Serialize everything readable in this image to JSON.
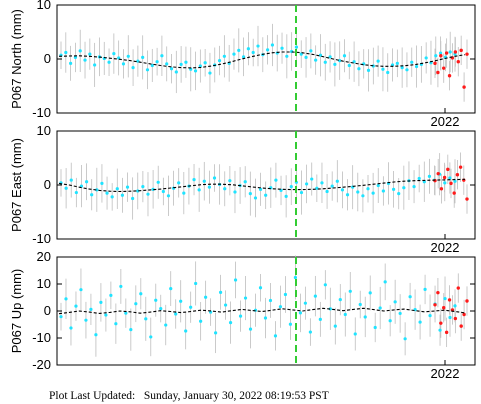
{
  "chart_data": [
    {
      "type": "scatter",
      "ylabel": "P067 North (mm)",
      "ylim": [
        -10,
        10
      ],
      "yticks": [
        -10,
        0,
        10
      ],
      "year_label": "2022",
      "series": [
        {
          "values": [
            0.7,
            1.2,
            -0.8,
            0.3,
            1.5,
            -0.2,
            0.9,
            -1.1,
            0.4,
            0.1,
            -0.6,
            1.0,
            0.2,
            -0.9,
            0.5,
            -1.6,
            -0.4,
            0.3,
            -2.0,
            -1.2,
            -0.5,
            0.6,
            -0.9,
            -1.8,
            -2.4,
            -1.0,
            -0.6,
            -1.9,
            -2.2,
            -1.3,
            -0.7,
            -2.6,
            -1.1,
            -0.3,
            0.5,
            -0.8,
            0.9,
            1.6,
            0.4,
            1.9,
            1.2,
            2.4,
            0.8,
            1.7,
            2.6,
            1.1,
            2.0,
            0.5,
            1.4,
            2.2,
            0.9,
            0.3,
            1.5,
            -0.2,
            0.7,
            -0.6,
            0.4,
            -1.0,
            -0.3,
            0.6,
            -1.2,
            -0.5,
            -1.8,
            -0.9,
            -2.1,
            -1.3,
            -0.4,
            -1.9,
            -2.5,
            -1.1,
            -0.8,
            -1.6,
            -2.0,
            -0.6,
            -1.4,
            -1.0,
            0.2,
            -0.7,
            0.6,
            1.1,
            0.3,
            1.3,
            0.9
          ]
        },
        {
          "values": [
            -0.8,
            -2.5,
            0.6,
            -1.7,
            1.1,
            -3.1,
            0.2,
            1.3,
            -0.5,
            1.6,
            -5.2,
            0.9
          ]
        },
        {
          "values": [
            0.5,
            0.55,
            0.6,
            0.5,
            0.35,
            0.15,
            -0.05,
            -0.3,
            -0.6,
            -0.9,
            -1.2,
            -1.45,
            -1.6,
            -1.65,
            -1.55,
            -1.3,
            -0.95,
            -0.5,
            0.0,
            0.45,
            0.85,
            1.15,
            1.3,
            1.3,
            1.15,
            0.85,
            0.45,
            0.0,
            -0.4,
            -0.75,
            -1.05,
            -1.25,
            -1.35,
            -1.35,
            -1.25,
            -1.05,
            -0.75,
            -0.35,
            0.1,
            0.5,
            0.8
          ]
        }
      ]
    },
    {
      "type": "scatter",
      "ylabel": "P067 East (mm)",
      "ylim": [
        -10,
        10
      ],
      "yticks": [
        -10,
        0,
        10
      ],
      "year_label": "2022",
      "series": [
        {
          "values": [
            0.4,
            -0.6,
            0.9,
            -1.4,
            -0.2,
            0.6,
            -1.8,
            -0.9,
            0.3,
            -1.5,
            -2.2,
            -0.7,
            -1.9,
            -0.4,
            -2.5,
            -1.1,
            -0.3,
            -1.7,
            -0.8,
            0.5,
            -1.2,
            -2.0,
            -0.6,
            0.4,
            -1.5,
            -0.2,
            1.0,
            -0.9,
            0.7,
            -0.4,
            1.3,
            0.1,
            -0.7,
            0.8,
            -1.3,
            -0.1,
            0.6,
            -1.6,
            -2.4,
            -0.8,
            -1.9,
            -0.5,
            0.9,
            -1.0,
            -2.1,
            -0.3,
            0.5,
            -1.4,
            0.2,
            1.1,
            -0.6,
            0.4,
            -1.2,
            -0.2,
            0.7,
            -0.9,
            -1.8,
            -0.4,
            -1.3,
            -2.0,
            -0.7,
            -1.5,
            -0.1,
            -1.1,
            0.3,
            -0.8,
            -1.6,
            -0.5,
            0.8,
            -0.3,
            1.2,
            0.6,
            1.6,
            0.9,
            2.0,
            0.4,
            1.3,
            0.7
          ]
        },
        {
          "values": [
            0.8,
            2.1,
            -0.7,
            1.4,
            2.9,
            0.3,
            -1.5,
            1.9,
            3.3,
            0.9,
            -2.6
          ]
        },
        {
          "values": [
            0.3,
            0.0,
            -0.4,
            -0.75,
            -1.0,
            -1.15,
            -1.2,
            -1.15,
            -1.05,
            -0.9,
            -0.75,
            -0.55,
            -0.35,
            -0.15,
            0.05,
            0.15,
            0.15,
            0.05,
            -0.15,
            -0.35,
            -0.55,
            -0.7,
            -0.8,
            -0.85,
            -0.85,
            -0.8,
            -0.7,
            -0.55,
            -0.4,
            -0.25,
            -0.05,
            0.15,
            0.35,
            0.55,
            0.7,
            0.8,
            0.85,
            0.9,
            0.95,
            1.0,
            1.05
          ]
        }
      ]
    },
    {
      "type": "scatter",
      "ylabel": "P067 Up (mm)",
      "ylim": [
        -20,
        20
      ],
      "yticks": [
        -20,
        -10,
        0,
        10,
        20
      ],
      "year_label": "2022",
      "series": [
        {
          "values": [
            -2.1,
            4.5,
            -6.3,
            1.8,
            7.9,
            -3.4,
            0.6,
            -8.8,
            3.2,
            -1.5,
            5.8,
            -4.7,
            9.1,
            -0.8,
            -6.9,
            2.7,
            6.4,
            -2.9,
            -9.6,
            4.0,
            0.9,
            -5.2,
            8.3,
            -1.1,
            3.6,
            -7.4,
            1.4,
            10.2,
            -3.8,
            5.1,
            -0.4,
            -8.1,
            6.9,
            2.2,
            -4.3,
            11.5,
            -1.9,
            4.8,
            -6.7,
            0.3,
            8.6,
            -2.6,
            3.9,
            -9.2,
            1.6,
            6.1,
            -4.9,
            12.4,
            -0.7,
            2.9,
            -7.8,
            5.5,
            -3.1,
            9.7,
            0.8,
            -5.6,
            4.2,
            -1.3,
            7.3,
            -8.5,
            2.4,
            -2.2,
            6.7,
            -6.1,
            1.1,
            10.8,
            -3.6,
            3.4,
            -0.9,
            -10.3,
            5.3,
            0.5,
            -4.1,
            8.0,
            -1.7,
            2.6,
            -7.1,
            4.6,
            -2.4,
            1.9
          ]
        },
        {
          "values": [
            2.3,
            6.8,
            -4.5,
            1.2,
            -7.9,
            4.1,
            0.4,
            -2.8,
            8.5,
            -5.6,
            -1.3,
            3.7
          ]
        },
        {
          "values": [
            -1.0,
            -0.5,
            0.0,
            -0.4,
            -0.9,
            -0.5,
            0.0,
            -0.3,
            -0.8,
            -0.4,
            0.1,
            -0.2,
            -0.6,
            -0.2,
            0.3,
            0.0,
            -0.4,
            0.1,
            0.6,
            0.2,
            -0.2,
            0.3,
            0.8,
            0.4,
            0.0,
            0.5,
            1.0,
            0.6,
            0.1,
            0.6,
            1.0,
            0.5,
            0.0,
            0.4,
            0.7,
            0.2,
            -0.3,
            0.0,
            0.3,
            -0.2,
            -0.7
          ]
        }
      ]
    }
  ],
  "footer": {
    "label": "Plot Last Updated:",
    "value": "Sunday, January 30, 2022 08:19:53 PST"
  },
  "colors": {
    "cyan_points": "#1fe3ff",
    "red_points": "#ff1a1a",
    "error_bars": "#bdbdbd",
    "model_line": "#000000",
    "event_line": "#33cc33"
  }
}
